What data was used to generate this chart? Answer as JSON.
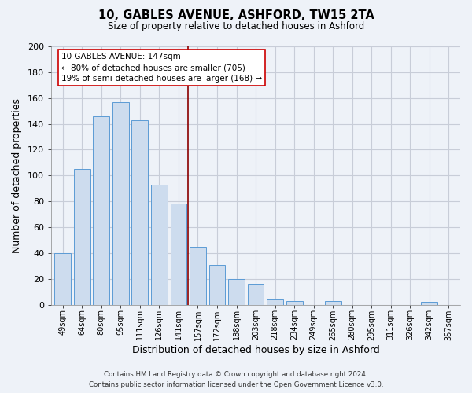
{
  "title": "10, GABLES AVENUE, ASHFORD, TW15 2TA",
  "subtitle": "Size of property relative to detached houses in Ashford",
  "xlabel": "Distribution of detached houses by size in Ashford",
  "ylabel": "Number of detached properties",
  "categories": [
    "49sqm",
    "64sqm",
    "80sqm",
    "95sqm",
    "111sqm",
    "126sqm",
    "141sqm",
    "157sqm",
    "172sqm",
    "188sqm",
    "203sqm",
    "218sqm",
    "234sqm",
    "249sqm",
    "265sqm",
    "280sqm",
    "295sqm",
    "311sqm",
    "326sqm",
    "342sqm",
    "357sqm"
  ],
  "values": [
    40,
    105,
    146,
    157,
    143,
    93,
    78,
    45,
    31,
    20,
    16,
    4,
    3,
    0,
    3,
    0,
    0,
    0,
    0,
    2,
    0
  ],
  "bar_color": "#cddcee",
  "bar_edge_color": "#5b9bd5",
  "vline_x": 6.5,
  "vline_color": "#8b0000",
  "annotation_title": "10 GABLES AVENUE: 147sqm",
  "annotation_line1": "← 80% of detached houses are smaller (705)",
  "annotation_line2": "19% of semi-detached houses are larger (168) →",
  "annotation_box_color": "#ffffff",
  "annotation_box_edge": "#cc0000",
  "footer_line1": "Contains HM Land Registry data © Crown copyright and database right 2024.",
  "footer_line2": "Contains public sector information licensed under the Open Government Licence v3.0.",
  "ylim": [
    0,
    200
  ],
  "yticks": [
    0,
    20,
    40,
    60,
    80,
    100,
    120,
    140,
    160,
    180,
    200
  ],
  "bg_color": "#eef2f8",
  "plot_bg_color": "#eef2f8",
  "grid_color": "#c8cdd8"
}
